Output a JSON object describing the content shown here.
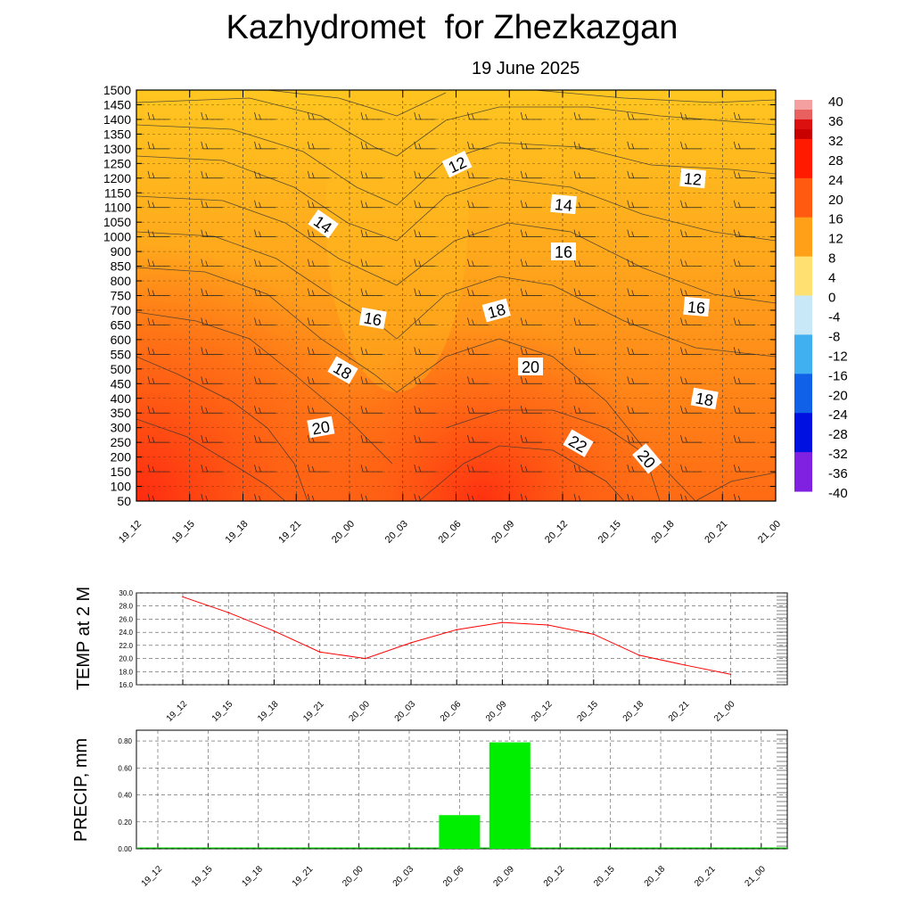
{
  "title": "Kazhydromet  for Zhezkazgan",
  "subtitle": "19 June 2025",
  "time_labels": [
    "19_12",
    "19_15",
    "19_18",
    "19_21",
    "20_00",
    "20_03",
    "20_06",
    "20_09",
    "20_12",
    "20_15",
    "20_18",
    "20_21",
    "21_00"
  ],
  "chart_data": [
    {
      "type": "heatmap",
      "description_level": "cross-section",
      "y_ticks": [
        50,
        100,
        150,
        200,
        250,
        300,
        350,
        400,
        450,
        500,
        550,
        600,
        650,
        700,
        750,
        800,
        850,
        900,
        1000,
        1050,
        1100,
        1150,
        1200,
        1250,
        1300,
        1350,
        1400,
        1450,
        1500
      ],
      "colorbar_labels": [
        40,
        36,
        32,
        28,
        24,
        20,
        16,
        12,
        8,
        4,
        0,
        -4,
        -8,
        -12,
        -16,
        -20,
        -24,
        -28,
        -32,
        -36,
        -40
      ],
      "contour_labels": [
        "12",
        "14",
        "16",
        "18",
        "20",
        "22",
        "12",
        "14",
        "16",
        "18",
        "20",
        "16",
        "18",
        "20"
      ],
      "colors": {
        "hot": "#ff2a10",
        "mid": "#ff8c10",
        "cool": "#ffc820"
      }
    },
    {
      "type": "line",
      "ylabel": "TEMP at 2 M",
      "x": [
        "19_12",
        "19_15",
        "19_18",
        "19_21",
        "20_00",
        "20_03",
        "20_06",
        "20_09",
        "20_12",
        "20_15",
        "20_18",
        "20_21",
        "21_00"
      ],
      "values": [
        29.4,
        27.0,
        24.2,
        21.0,
        20.0,
        22.4,
        24.4,
        25.5,
        25.1,
        23.7,
        20.5,
        19.0,
        17.6
      ],
      "y_ticks": [
        "30.0",
        "28.0",
        "26.0",
        "24.0",
        "22.0",
        "20.0",
        "18.0",
        "16.0"
      ],
      "ylim": [
        16,
        30
      ],
      "color": "#ff0000"
    },
    {
      "type": "bar",
      "ylabel": "PRECIP, mm",
      "x": [
        "19_12",
        "19_15",
        "19_18",
        "19_21",
        "20_00",
        "20_03",
        "20_06",
        "20_09",
        "20_12",
        "20_15",
        "20_18",
        "20_21",
        "21_00"
      ],
      "values": [
        0,
        0,
        0,
        0,
        0,
        0,
        0.25,
        0.79,
        0,
        0,
        0,
        0,
        0
      ],
      "y_ticks": [
        "0.80",
        "0.60",
        "0.40",
        "0.20",
        "0.00"
      ],
      "ylim": [
        0,
        0.88
      ],
      "color": "#00ee00"
    }
  ]
}
